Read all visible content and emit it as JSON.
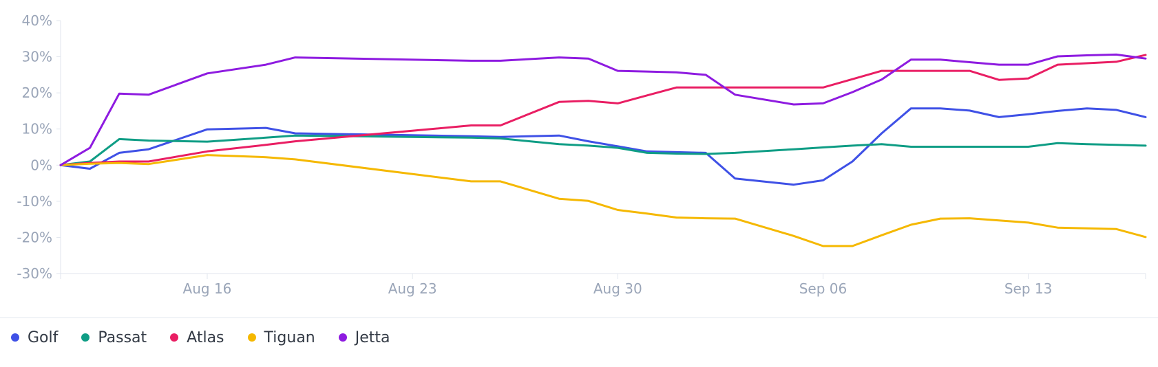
{
  "chart_data": {
    "type": "line",
    "x": [
      "2021-08-11",
      "2021-08-12",
      "2021-08-13",
      "2021-08-14",
      "2021-08-16",
      "2021-08-18",
      "2021-08-19",
      "2021-08-25",
      "2021-08-26",
      "2021-08-28",
      "2021-08-29",
      "2021-08-30",
      "2021-08-31",
      "2021-09-01",
      "2021-09-02",
      "2021-09-03",
      "2021-09-05",
      "2021-09-06",
      "2021-09-07",
      "2021-09-08",
      "2021-09-09",
      "2021-09-10",
      "2021-09-11",
      "2021-09-12",
      "2021-09-13",
      "2021-09-14",
      "2021-09-15",
      "2021-09-16",
      "2021-09-17"
    ],
    "series": [
      {
        "name": "Golf",
        "color": "#3f51e6",
        "values": [
          0,
          -1.0,
          3.4,
          4.4,
          9.9,
          10.3,
          8.8,
          8.0,
          7.8,
          8.2,
          6.6,
          5.2,
          3.8,
          3.6,
          3.4,
          -3.7,
          -5.4,
          -4.2,
          1.0,
          8.8,
          15.7,
          15.7,
          15.1,
          13.3,
          14.1,
          15.0,
          15.7,
          15.3,
          13.3
        ]
      },
      {
        "name": "Passat",
        "color": "#0f9d85",
        "values": [
          0,
          1.0,
          7.2,
          6.8,
          6.5,
          7.6,
          8.2,
          7.6,
          7.4,
          5.8,
          5.4,
          4.8,
          3.4,
          3.2,
          3.1,
          3.4,
          4.4,
          4.9,
          5.4,
          5.8,
          5.1,
          5.1,
          5.1,
          5.1,
          5.1,
          6.1,
          5.8,
          5.6,
          5.4
        ]
      },
      {
        "name": "Atlas",
        "color": "#e91e63",
        "values": [
          0,
          0.6,
          1.0,
          1.0,
          3.8,
          5.6,
          6.6,
          11.0,
          11.0,
          17.5,
          17.8,
          17.1,
          19.3,
          21.5,
          21.5,
          21.5,
          21.5,
          21.5,
          23.8,
          26.1,
          26.1,
          26.1,
          26.1,
          23.6,
          24.0,
          27.8,
          28.2,
          28.6,
          30.5
        ]
      },
      {
        "name": "Tiguan",
        "color": "#f5b800",
        "values": [
          0,
          0.4,
          0.6,
          0.3,
          2.8,
          2.2,
          1.6,
          -4.5,
          -4.5,
          -9.3,
          -9.9,
          -12.4,
          -13.4,
          -14.5,
          -14.7,
          -14.8,
          -19.6,
          -22.4,
          -22.4,
          -19.4,
          -16.5,
          -14.8,
          -14.7,
          -15.3,
          -15.9,
          -17.3,
          -17.5,
          -17.7,
          -19.9
        ]
      },
      {
        "name": "Jetta",
        "color": "#8e1be0",
        "values": [
          0,
          4.8,
          19.8,
          19.5,
          25.4,
          27.8,
          29.8,
          28.9,
          28.9,
          29.8,
          29.5,
          26.1,
          25.9,
          25.7,
          25.0,
          19.5,
          16.8,
          17.1,
          20.2,
          23.7,
          29.2,
          29.2,
          28.5,
          27.8,
          27.8,
          30.1,
          30.4,
          30.6,
          29.5
        ]
      }
    ],
    "ylim": [
      -30,
      40
    ],
    "yticks": [
      "40%",
      "30%",
      "20%",
      "10%",
      "0%",
      "-10%",
      "-20%",
      "-30%"
    ],
    "ytick_values": [
      40,
      30,
      20,
      10,
      0,
      -10,
      -20,
      -30
    ],
    "xticks": [
      "Aug 16",
      "Aug 23",
      "Aug 30",
      "Sep 06",
      "Sep 13"
    ],
    "xtick_values": [
      "2021-08-16",
      "2021-08-23",
      "2021-08-30",
      "2021-09-06",
      "2021-09-13"
    ],
    "xlim": [
      "2021-08-11",
      "2021-09-17"
    ],
    "legend_position": "bottom-left",
    "grid": false,
    "title": "",
    "xlabel": "",
    "ylabel": ""
  }
}
